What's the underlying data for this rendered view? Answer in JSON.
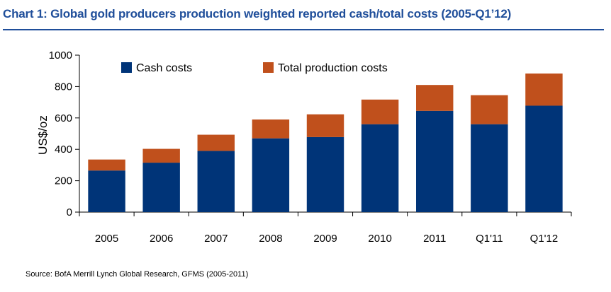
{
  "chart_data": {
    "type": "bar",
    "stacked": true,
    "title": "Chart 1: Global gold producers production weighted reported cash/total costs (2005-Q1’12)",
    "xlabel": "",
    "ylabel": "US$/oz",
    "ylim": [
      0,
      1000
    ],
    "yticks": [
      "0",
      "200",
      "400",
      "600",
      "800",
      "1000"
    ],
    "categories": [
      "2005",
      "2006",
      "2007",
      "2008",
      "2009",
      "2010",
      "2011",
      "Q1'11",
      "Q1'12"
    ],
    "series": [
      {
        "name": "Cash costs",
        "color": "#003478",
        "values": [
          265,
          315,
          390,
          470,
          478,
          560,
          645,
          560,
          678
        ]
      },
      {
        "name": "Total production costs",
        "color": "#c0501c",
        "values": [
          70,
          88,
          103,
          120,
          145,
          157,
          165,
          185,
          205
        ]
      }
    ],
    "legend_position": "top-left-inside",
    "grid": false,
    "source": "Source: BofA Merrill Lynch Global Research, GFMS (2005-2011)"
  }
}
